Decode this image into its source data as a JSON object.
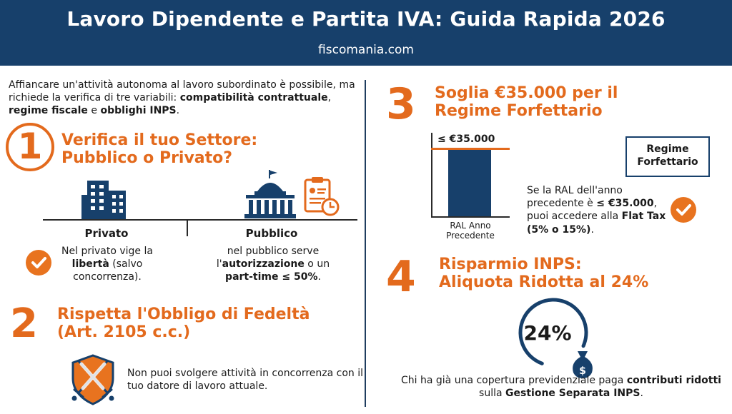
{
  "header": {
    "title": "Lavoro Dipendente e Partita IVA: Guida Rapida 2026",
    "site": "fiscomania.com"
  },
  "intro": {
    "text_start": "Affiancare un'attività autonoma al lavoro subordinato è possibile, ma richiede la verifica di tre variabili: ",
    "b1": "compatibilità contrattuale",
    "sep1": ", ",
    "b2": "regime fiscale",
    "sep2": " e ",
    "b3": "obblighi INPS",
    "end": "."
  },
  "section1": {
    "number": "1",
    "title_line1": "Verifica il tuo Settore:",
    "title_line2": "Pubblico o Privato?",
    "private": {
      "head": "Privato",
      "t1": "Nel privato vige la ",
      "b1": "libertà",
      "t2": " (salvo concorrenza)."
    },
    "public": {
      "head": "Pubblico",
      "t1": "nel pubblico serve l'",
      "b1": "autorizzazione",
      "t2": " o un ",
      "b2": "part-time ≤ 50%",
      "t3": "."
    },
    "icons": [
      "office-building-icon",
      "government-building-icon",
      "document-clock-icon",
      "checkmark-icon"
    ]
  },
  "section2": {
    "number": "2",
    "title_line1": "Rispetta l'Obbligo di Fedeltà",
    "title_line2": "(Art. 2105 c.c.)",
    "text": "Non puoi svolgere attività in concorrenza con il tuo datore di lavoro attuale.",
    "icon": "shield-swords-icon"
  },
  "section3": {
    "number": "3",
    "title_line1": "Soglia €35.000 per il",
    "title_line2": "Regime Forfettario",
    "threshold_label": "≤ €35.000",
    "bar_label": "RAL Anno Precedente",
    "bar_value": 35000,
    "threshold_value": 35000,
    "box_label": "Regime Forfettario",
    "t1": "Se la RAL dell'anno precedente è ",
    "b1": "≤ €35.000",
    "t2": ", puoi accedere alla ",
    "b2": "Flat Tax (5% o 15%)",
    "t3": "."
  },
  "section4": {
    "number": "4",
    "title_line1": "Risparmio INPS:",
    "title_line2": "Aliquota Ridotta al 24%",
    "ring_value": "24%",
    "ring_fraction": 0.76,
    "t1": "Chi ha già una copertura previdenziale paga ",
    "b1": "contributi ridotti",
    "t2": " sulla ",
    "b2": "Gestione Separata INPS",
    "t3": ".",
    "icon": "money-bag-icon"
  },
  "colors": {
    "header_bg": "#17406b",
    "accent": "#e36a1d",
    "navy": "#17406b",
    "text": "#1a1a1a"
  }
}
